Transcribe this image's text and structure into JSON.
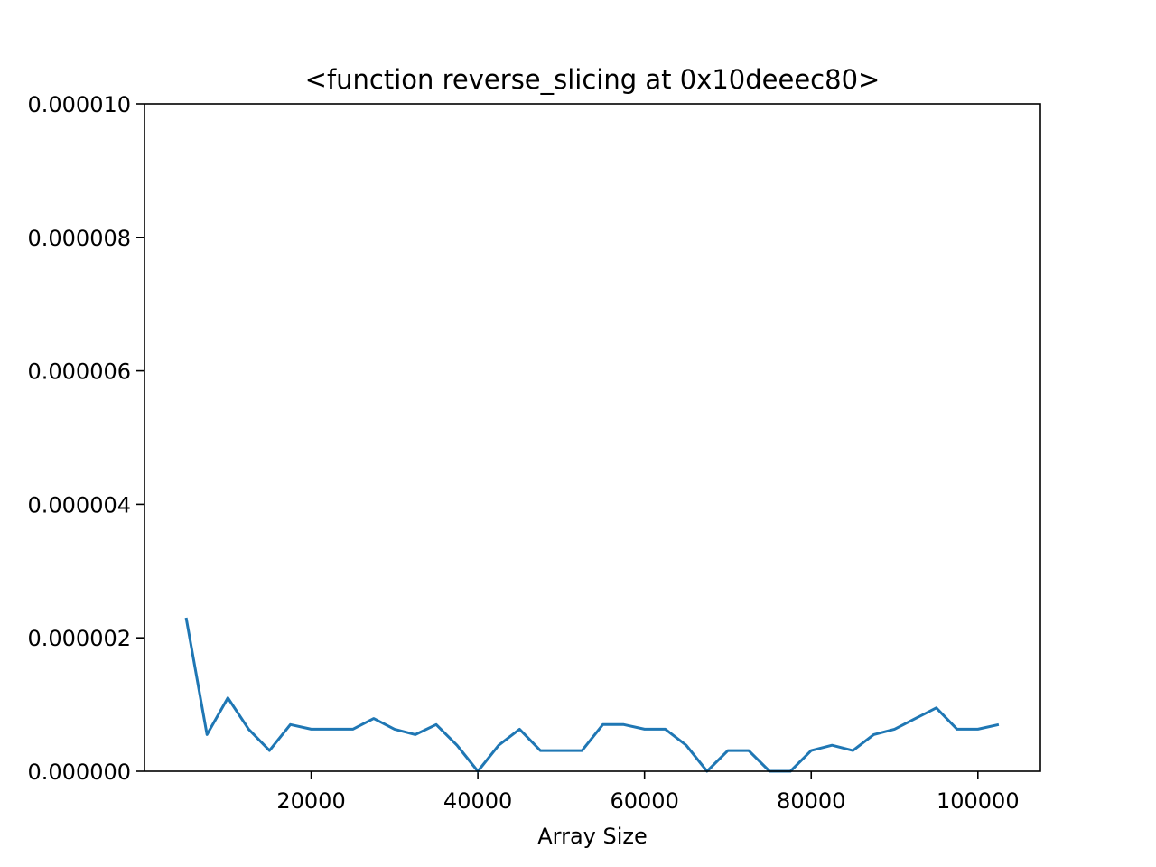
{
  "chart_data": {
    "type": "line",
    "title": "<function reverse_slicing at 0x10deeec80>",
    "xlabel": "Array Size",
    "ylabel": "",
    "xlim": [
      0,
      107500
    ],
    "ylim": [
      0,
      1e-05
    ],
    "grid": false,
    "line_color": "#1f77b4",
    "x_ticks": [
      20000,
      40000,
      60000,
      80000,
      100000
    ],
    "x_tick_labels": [
      "20000",
      "40000",
      "60000",
      "80000",
      "100000"
    ],
    "y_ticks": [
      0,
      2e-06,
      4e-06,
      6e-06,
      8e-06,
      1e-05
    ],
    "y_tick_labels": [
      "0.000000",
      "0.000002",
      "0.000004",
      "0.000006",
      "0.000008",
      "0.000010"
    ],
    "series": [
      {
        "x": [
          5000,
          7500,
          10000,
          12500,
          15000,
          17500,
          20000,
          22500,
          25000,
          27500,
          30000,
          32500,
          35000,
          37500,
          40000,
          42500,
          45000,
          47500,
          50000,
          52500,
          55000,
          57500,
          60000,
          62500,
          65000,
          67500,
          70000,
          72500,
          75000,
          77500,
          80000,
          82500,
          85000,
          87500,
          90000,
          92500,
          95000,
          97500,
          100000,
          102500
        ],
        "y": [
          2.3e-06,
          5.5e-07,
          1.1e-06,
          6.3e-07,
          3.1e-07,
          7e-07,
          6.3e-07,
          6.3e-07,
          6.3e-07,
          7.9e-07,
          6.3e-07,
          5.5e-07,
          7e-07,
          3.9e-07,
          0.0,
          3.9e-07,
          6.3e-07,
          3.1e-07,
          3.1e-07,
          3.1e-07,
          7e-07,
          7e-07,
          6.3e-07,
          6.3e-07,
          3.9e-07,
          0.0,
          3.1e-07,
          3.1e-07,
          0.0,
          0.0,
          3.1e-07,
          3.9e-07,
          3.1e-07,
          5.5e-07,
          6.3e-07,
          7.9e-07,
          9.5e-07,
          6.3e-07,
          6.3e-07,
          7e-07
        ]
      }
    ]
  }
}
